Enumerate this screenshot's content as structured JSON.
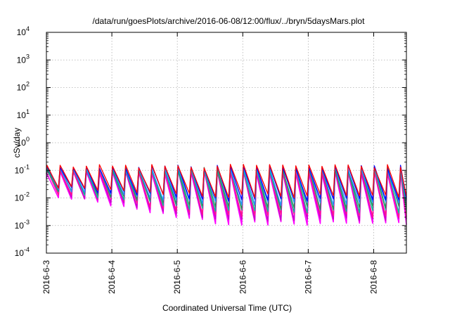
{
  "chart_data": {
    "type": "line",
    "title": "/data/run/goesPlots/archive/2016-06-08/12:00/flux/../bryn/5daysMars.plot",
    "xlabel": "Coordinated Universal Time (UTC)",
    "ylabel": "cSv/day",
    "yscale": "log",
    "ylim": [
      0.0001,
      10000
    ],
    "xlim": [
      0,
      5.5
    ],
    "y_ticks": [
      {
        "base": "10",
        "exp": "-4"
      },
      {
        "base": "10",
        "exp": "-3"
      },
      {
        "base": "10",
        "exp": "-2"
      },
      {
        "base": "10",
        "exp": "-1"
      },
      {
        "base": "10",
        "exp": "0"
      },
      {
        "base": "10",
        "exp": "1"
      },
      {
        "base": "10",
        "exp": "2"
      },
      {
        "base": "10",
        "exp": "3"
      },
      {
        "base": "10",
        "exp": "4"
      }
    ],
    "x_ticks": [
      "2016-6-3",
      "2016-6-4",
      "2016-6-5",
      "2016-6-6",
      "2016-6-7",
      "2016-6-8"
    ],
    "grid": true,
    "series_colors": [
      "#ff00ff",
      "#cc00cc",
      "#ff1493",
      "#00bfa0",
      "#2e8b57",
      "#1e90ff",
      "#0000ff",
      "#ff0000"
    ],
    "waveform": {
      "cycles_per_day": 5,
      "peak_min": 0.06,
      "peak_max": 0.15,
      "trough_min_start": 0.012,
      "trough_min_end": 0.0012,
      "trough_max_start": 0.025,
      "trough_max_end": 0.012
    }
  }
}
